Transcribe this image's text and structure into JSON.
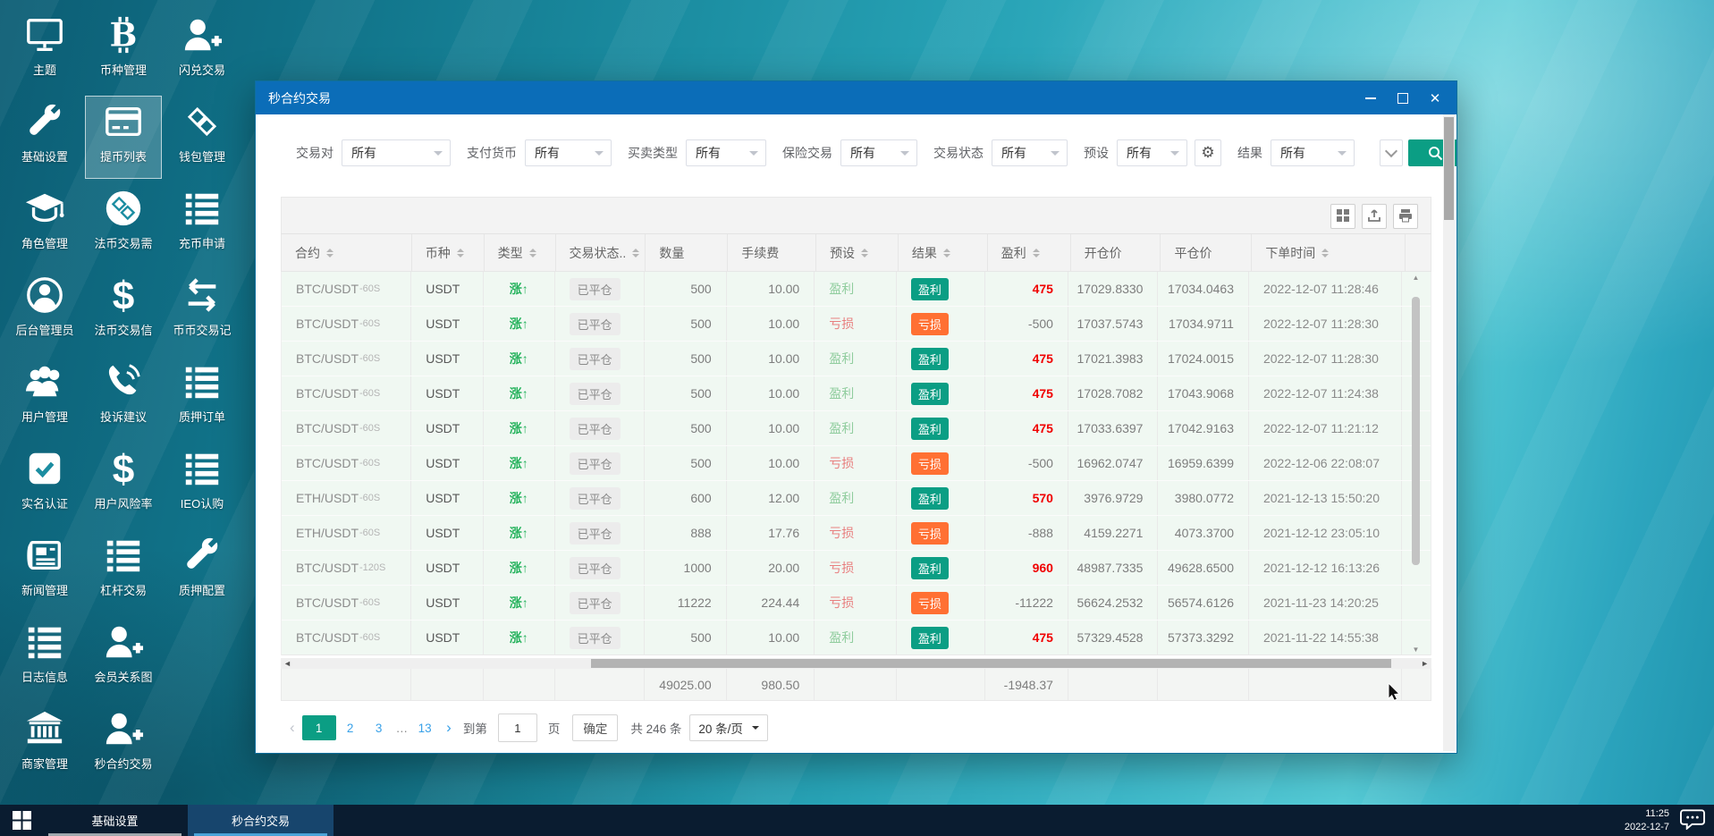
{
  "colors": {
    "accent_teal": "#0b9e84",
    "loss_orange": "#ff7033",
    "titlebar_blue": "#0b6db8",
    "link_blue": "#39a1e8",
    "profit_red": "#f00000",
    "rise_green": "#27b35e"
  },
  "desktop": {
    "icons": [
      {
        "label": "主题",
        "icon": "monitor"
      },
      {
        "label": "币种管理",
        "icon": "bitcoin"
      },
      {
        "label": "闪兑交易",
        "icon": "user-plus"
      },
      {
        "label": "基础设置",
        "icon": "wrench"
      },
      {
        "label": "提币列表",
        "icon": "card",
        "selected": true
      },
      {
        "label": "钱包管理",
        "icon": "exchange"
      },
      {
        "label": "角色管理",
        "icon": "grad-cap"
      },
      {
        "label": "法币交易需",
        "icon": "exchange-circle"
      },
      {
        "label": "充币申请",
        "icon": "list"
      },
      {
        "label": "后台管理员",
        "icon": "admin"
      },
      {
        "label": "法币交易信",
        "icon": "dollar"
      },
      {
        "label": "币币交易记",
        "icon": "arrows"
      },
      {
        "label": "用户管理",
        "icon": "users"
      },
      {
        "label": "投诉建议",
        "icon": "phone"
      },
      {
        "label": "质押订单",
        "icon": "list"
      },
      {
        "label": "实名认证",
        "icon": "check"
      },
      {
        "label": "用户风险率",
        "icon": "dollar"
      },
      {
        "label": "IEO认购",
        "icon": "list"
      },
      {
        "label": "新闻管理",
        "icon": "news"
      },
      {
        "label": "杠杆交易",
        "icon": "list"
      },
      {
        "label": "质押配置",
        "icon": "wrench"
      },
      {
        "label": "日志信息",
        "icon": "list"
      },
      {
        "label": "会员关系图",
        "icon": "user-plus"
      },
      {
        "label": "",
        "icon": ""
      },
      {
        "label": "商家管理",
        "icon": "bank"
      },
      {
        "label": "秒合约交易",
        "icon": "user-plus"
      }
    ]
  },
  "window": {
    "title": "秒合约交易",
    "controls": {
      "minimize": "minimize",
      "maximize": "maximize",
      "close": "close"
    },
    "filters": [
      {
        "label": "交易对",
        "value": "所有"
      },
      {
        "label": "支付货币",
        "value": "所有"
      },
      {
        "label": "买卖类型",
        "value": "所有"
      },
      {
        "label": "保险交易",
        "value": "所有"
      },
      {
        "label": "交易状态",
        "value": "所有"
      },
      {
        "label": "预设",
        "value": "所有",
        "gear": true
      },
      {
        "label": "结果",
        "value": "所有"
      }
    ],
    "toolbar_icons": [
      "grid-icon",
      "export-icon",
      "print-icon"
    ],
    "table": {
      "columns": [
        {
          "label": "合约",
          "sortable": true
        },
        {
          "label": "币种",
          "sortable": true
        },
        {
          "label": "类型",
          "sortable": true
        },
        {
          "label": "交易状态..",
          "sortable": true
        },
        {
          "label": "数量",
          "sortable": false
        },
        {
          "label": "手续费",
          "sortable": false
        },
        {
          "label": "预设",
          "sortable": true
        },
        {
          "label": "结果",
          "sortable": true
        },
        {
          "label": "盈利",
          "sortable": true
        },
        {
          "label": "开仓价",
          "sortable": false
        },
        {
          "label": "平仓价",
          "sortable": false
        },
        {
          "label": "下单时间",
          "sortable": true
        }
      ],
      "rows": [
        {
          "pair": "BTC/USDT",
          "suffix": "-60S",
          "coin": "USDT",
          "type": "涨↑",
          "status": "已平仓",
          "qty": "500",
          "fee": "10.00",
          "preset": "盈利",
          "result": "盈利",
          "profit": "475",
          "open": "17029.8330",
          "close": "17034.0463",
          "time": "2022-12-07 11:28:46"
        },
        {
          "pair": "BTC/USDT",
          "suffix": "-60S",
          "coin": "USDT",
          "type": "涨↑",
          "status": "已平仓",
          "qty": "500",
          "fee": "10.00",
          "preset": "亏损",
          "result": "亏损",
          "profit": "-500",
          "open": "17037.5743",
          "close": "17034.9711",
          "time": "2022-12-07 11:28:30"
        },
        {
          "pair": "BTC/USDT",
          "suffix": "-60S",
          "coin": "USDT",
          "type": "涨↑",
          "status": "已平仓",
          "qty": "500",
          "fee": "10.00",
          "preset": "盈利",
          "result": "盈利",
          "profit": "475",
          "open": "17021.3983",
          "close": "17024.0015",
          "time": "2022-12-07 11:28:30"
        },
        {
          "pair": "BTC/USDT",
          "suffix": "-60S",
          "coin": "USDT",
          "type": "涨↑",
          "status": "已平仓",
          "qty": "500",
          "fee": "10.00",
          "preset": "盈利",
          "result": "盈利",
          "profit": "475",
          "open": "17028.7082",
          "close": "17043.9068",
          "time": "2022-12-07 11:24:38"
        },
        {
          "pair": "BTC/USDT",
          "suffix": "-60S",
          "coin": "USDT",
          "type": "涨↑",
          "status": "已平仓",
          "qty": "500",
          "fee": "10.00",
          "preset": "盈利",
          "result": "盈利",
          "profit": "475",
          "open": "17033.6397",
          "close": "17042.9163",
          "time": "2022-12-07 11:21:12"
        },
        {
          "pair": "BTC/USDT",
          "suffix": "-60S",
          "coin": "USDT",
          "type": "涨↑",
          "status": "已平仓",
          "qty": "500",
          "fee": "10.00",
          "preset": "亏损",
          "result": "亏损",
          "profit": "-500",
          "open": "16962.0747",
          "close": "16959.6399",
          "time": "2022-12-06 22:08:07"
        },
        {
          "pair": "ETH/USDT",
          "suffix": "-60S",
          "coin": "USDT",
          "type": "涨↑",
          "status": "已平仓",
          "qty": "600",
          "fee": "12.00",
          "preset": "盈利",
          "result": "盈利",
          "profit": "570",
          "open": "3976.9729",
          "close": "3980.0772",
          "time": "2021-12-13 15:50:20"
        },
        {
          "pair": "ETH/USDT",
          "suffix": "-60S",
          "coin": "USDT",
          "type": "涨↑",
          "status": "已平仓",
          "qty": "888",
          "fee": "17.76",
          "preset": "亏损",
          "result": "亏损",
          "profit": "-888",
          "open": "4159.2271",
          "close": "4073.3700",
          "time": "2021-12-12 23:05:10"
        },
        {
          "pair": "BTC/USDT",
          "suffix": "-120S",
          "coin": "USDT",
          "type": "涨↑",
          "status": "已平仓",
          "qty": "1000",
          "fee": "20.00",
          "preset": "亏损",
          "result": "盈利",
          "profit": "960",
          "open": "48987.7335",
          "close": "49628.6500",
          "time": "2021-12-12 16:13:26"
        },
        {
          "pair": "BTC/USDT",
          "suffix": "-60S",
          "coin": "USDT",
          "type": "涨↑",
          "status": "已平仓",
          "qty": "11222",
          "fee": "224.44",
          "preset": "亏损",
          "result": "亏损",
          "profit": "-11222",
          "open": "56624.2532",
          "close": "56574.6126",
          "time": "2021-11-23 14:20:25"
        },
        {
          "pair": "BTC/USDT",
          "suffix": "-60S",
          "coin": "USDT",
          "type": "涨↑",
          "status": "已平仓",
          "qty": "500",
          "fee": "10.00",
          "preset": "盈利",
          "result": "盈利",
          "profit": "475",
          "open": "57329.4528",
          "close": "57373.3292",
          "time": "2021-11-22 14:55:38"
        }
      ],
      "summary": {
        "qty": "49025.00",
        "fee": "980.50",
        "profit": "-1948.37"
      }
    },
    "pagination": {
      "prev": "‹",
      "next": "›",
      "pages": [
        "1",
        "2",
        "3",
        "…",
        "13"
      ],
      "active": "1",
      "jump_prefix": "到第",
      "jump_value": "1",
      "jump_suffix": "页",
      "confirm_label": "确定",
      "total_label": "共 246 条",
      "size_label": "20 条/页"
    }
  },
  "taskbar": {
    "items": [
      "基础设置",
      "秒合约交易"
    ],
    "active": "秒合约交易",
    "time": "11:25",
    "date": "2022-12-7"
  }
}
